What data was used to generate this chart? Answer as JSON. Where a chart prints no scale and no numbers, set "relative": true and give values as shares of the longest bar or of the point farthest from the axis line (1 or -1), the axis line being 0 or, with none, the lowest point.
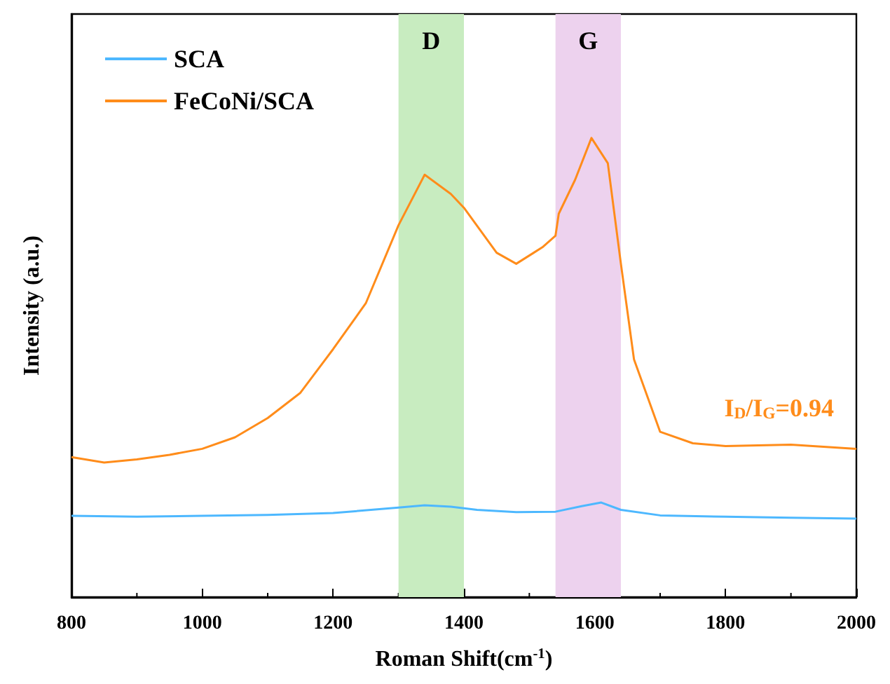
{
  "chart_data": {
    "type": "line",
    "relative": true,
    "xlabel": "Roman Shift(cm$^{-1}$)",
    "ylabel": "Intensity (a.u.)",
    "xlim": [
      800,
      2000
    ],
    "xticks": [
      800,
      1000,
      1200,
      1400,
      1600,
      1800,
      2000
    ],
    "legend": "top left",
    "grid": false,
    "marker": "none",
    "line_style": "solid",
    "bands": [
      {
        "axis": "x",
        "from": 1300,
        "to": 1400,
        "label": "D",
        "color": "#c8ecc0"
      },
      {
        "axis": "x",
        "from": 1540,
        "to": 1640,
        "label": "G",
        "color": "#edd2ee"
      }
    ],
    "annotations": [
      "I$_{D}$/I$_{G}$=0.94"
    ],
    "series": [
      {
        "name": "SCA",
        "color": "#4db8ff",
        "x": [
          800,
          900,
          1000,
          1100,
          1200,
          1300,
          1340,
          1380,
          1420,
          1480,
          1540,
          1580,
          1610,
          1640,
          1700,
          1800,
          1900,
          2000
        ],
        "values": [
          0.177,
          0.175,
          0.177,
          0.179,
          0.183,
          0.195,
          0.2,
          0.197,
          0.19,
          0.185,
          0.186,
          0.198,
          0.206,
          0.19,
          0.178,
          0.175,
          0.173,
          0.171
        ]
      },
      {
        "name": "FeCoNi/SCA",
        "color": "#ff8c1a",
        "x": [
          800,
          850,
          900,
          950,
          1000,
          1050,
          1100,
          1150,
          1200,
          1250,
          1300,
          1340,
          1380,
          1400,
          1450,
          1480,
          1520,
          1540,
          1545,
          1570,
          1595,
          1620,
          1640,
          1660,
          1700,
          1750,
          1800,
          1900,
          2000
        ],
        "values": [
          0.305,
          0.293,
          0.3,
          0.31,
          0.323,
          0.348,
          0.39,
          0.445,
          0.54,
          0.64,
          0.81,
          0.92,
          0.878,
          0.848,
          0.75,
          0.726,
          0.762,
          0.787,
          0.835,
          0.909,
          1,
          0.945,
          0.726,
          0.518,
          0.36,
          0.335,
          0.329,
          0.332,
          0.323
        ]
      }
    ]
  }
}
